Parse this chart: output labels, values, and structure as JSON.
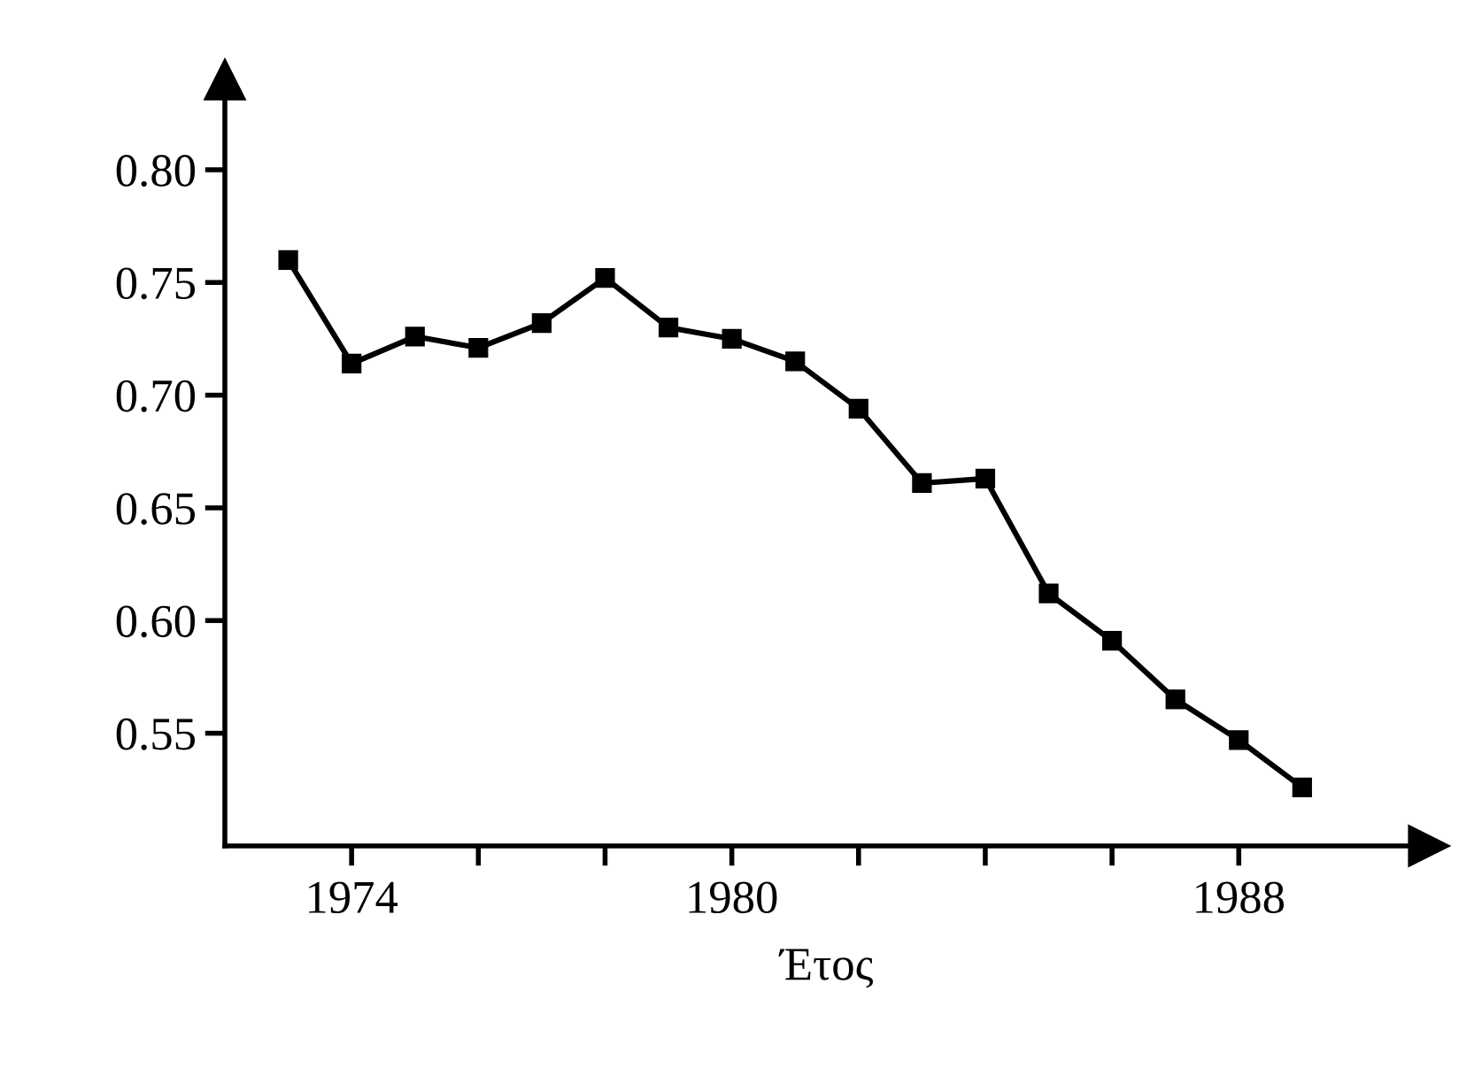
{
  "chart_data": {
    "type": "line",
    "xlabel": "Έτος",
    "x": [
      1973,
      1974,
      1975,
      1976,
      1977,
      1978,
      1979,
      1980,
      1981,
      1982,
      1983,
      1984,
      1985,
      1986,
      1987,
      1988,
      1989
    ],
    "series": [
      {
        "color": "#000000",
        "values": [
          0.76,
          0.714,
          0.726,
          0.721,
          0.732,
          0.752,
          0.73,
          0.725,
          0.715,
          0.694,
          0.661,
          0.663,
          0.612,
          0.591,
          0.565,
          0.547,
          0.526
        ]
      }
    ],
    "xlim": [
      1972,
      1991
    ],
    "ylim": [
      0.5,
      0.84
    ],
    "xticks": [
      {
        "value": 1974,
        "label": "1974"
      },
      {
        "value": 1976,
        "label": null
      },
      {
        "value": 1978,
        "label": null
      },
      {
        "value": 1980,
        "label": "1980"
      },
      {
        "value": 1982,
        "label": null
      },
      {
        "value": 1984,
        "label": null
      },
      {
        "value": 1986,
        "label": null
      },
      {
        "value": 1988,
        "label": "1988"
      }
    ],
    "yticks": [
      {
        "value": 0.55,
        "label": "0.55"
      },
      {
        "value": 0.6,
        "label": "0.60"
      },
      {
        "value": 0.65,
        "label": "0.65"
      },
      {
        "value": 0.7,
        "label": "0.70"
      },
      {
        "value": 0.75,
        "label": "0.75"
      },
      {
        "value": 0.8,
        "label": "0.80"
      }
    ],
    "grid": false,
    "legend": false,
    "marker": "square",
    "line_style": "solid"
  }
}
